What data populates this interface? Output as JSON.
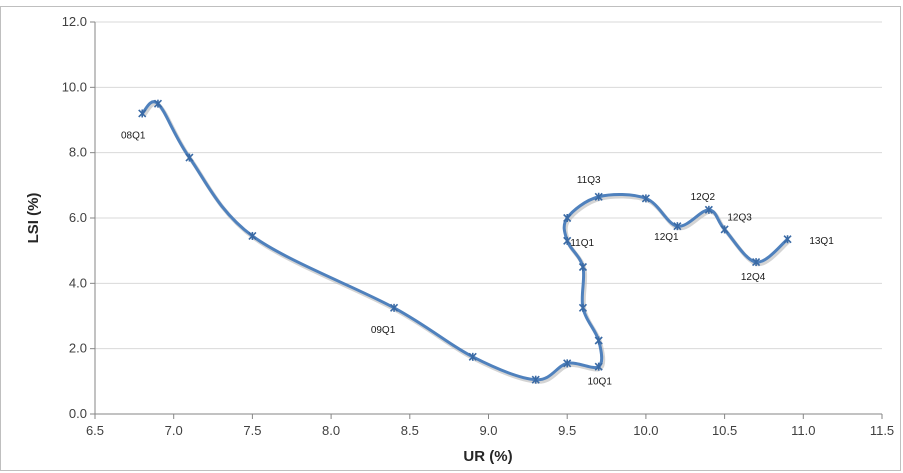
{
  "chart_data": {
    "type": "line",
    "title": "",
    "xlabel": "UR (%)",
    "ylabel": "LSI (%)",
    "xlim": [
      6.5,
      11.5
    ],
    "ylim": [
      0.0,
      12.0
    ],
    "x_ticks": [
      "6.5",
      "7.0",
      "7.5",
      "8.0",
      "8.5",
      "9.0",
      "9.5",
      "10.0",
      "10.5",
      "11.0",
      "11.5"
    ],
    "y_ticks": [
      "0.0",
      "2.0",
      "4.0",
      "6.0",
      "8.0",
      "10.0",
      "12.0"
    ],
    "grid": "horizontal",
    "series_color": "#4f81bd",
    "points": [
      {
        "x": 6.8,
        "y": 9.2,
        "label": "08Q1"
      },
      {
        "x": 6.9,
        "y": 9.5,
        "label": ""
      },
      {
        "x": 7.1,
        "y": 7.85,
        "label": ""
      },
      {
        "x": 7.5,
        "y": 5.45,
        "label": ""
      },
      {
        "x": 8.4,
        "y": 3.25,
        "label": "09Q1"
      },
      {
        "x": 8.9,
        "y": 1.75,
        "label": ""
      },
      {
        "x": 9.3,
        "y": 1.05,
        "label": ""
      },
      {
        "x": 9.5,
        "y": 1.55,
        "label": ""
      },
      {
        "x": 9.7,
        "y": 1.45,
        "label": "10Q1"
      },
      {
        "x": 9.7,
        "y": 2.25,
        "label": ""
      },
      {
        "x": 9.6,
        "y": 3.25,
        "label": ""
      },
      {
        "x": 9.6,
        "y": 4.5,
        "label": ""
      },
      {
        "x": 9.5,
        "y": 5.3,
        "label": "11Q1"
      },
      {
        "x": 9.5,
        "y": 6.0,
        "label": ""
      },
      {
        "x": 9.7,
        "y": 6.65,
        "label": "11Q3"
      },
      {
        "x": 10.0,
        "y": 6.6,
        "label": ""
      },
      {
        "x": 10.2,
        "y": 5.75,
        "label": "12Q1"
      },
      {
        "x": 10.4,
        "y": 6.25,
        "label": "12Q2"
      },
      {
        "x": 10.5,
        "y": 5.65,
        "label": "12Q3"
      },
      {
        "x": 10.7,
        "y": 4.65,
        "label": "12Q4"
      },
      {
        "x": 10.9,
        "y": 5.35,
        "label": "13Q1"
      }
    ]
  }
}
